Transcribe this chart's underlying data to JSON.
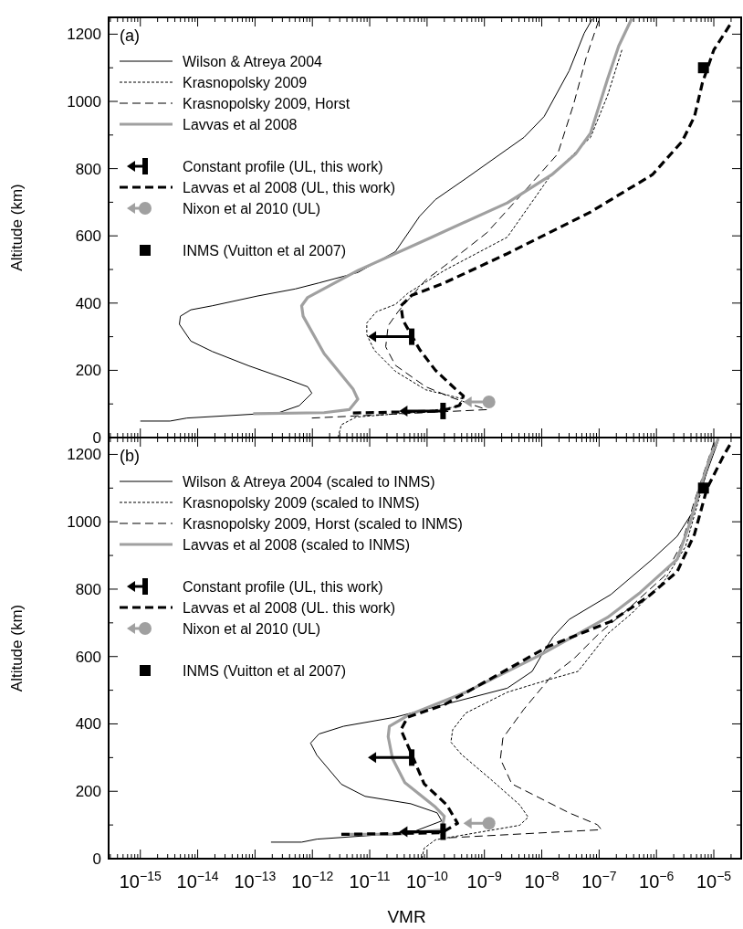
{
  "chart_data": [
    {
      "type": "line",
      "annotations": [
        "(a)"
      ],
      "ylabel": "Altitude (km)",
      "xlim": [
        2.8e-16,
        3e-05
      ],
      "ylim": [
        0,
        1250
      ],
      "log": "x",
      "legend": "top left",
      "tick_labels": "y",
      "xticks": [
        {
          "value": 3e-16,
          "label": null
        },
        {
          "value": 4e-16,
          "label": null
        },
        {
          "value": 5e-16,
          "label": null
        },
        {
          "value": 6e-16,
          "label": null
        },
        {
          "value": 7e-16,
          "label": null
        },
        {
          "value": 8e-16,
          "label": null
        },
        {
          "value": 9e-16,
          "label": null
        },
        {
          "value": 1e-15,
          "label": null
        },
        {
          "value": 2e-15,
          "label": null
        },
        {
          "value": 3e-15,
          "label": null
        },
        {
          "value": 4e-15,
          "label": null
        },
        {
          "value": 5e-15,
          "label": null
        },
        {
          "value": 6e-15,
          "label": null
        },
        {
          "value": 7e-15,
          "label": null
        },
        {
          "value": 8e-15,
          "label": null
        },
        {
          "value": 9e-15,
          "label": null
        },
        {
          "value": 1e-14,
          "label": null
        },
        {
          "value": 2e-14,
          "label": null
        },
        {
          "value": 3e-14,
          "label": null
        },
        {
          "value": 4e-14,
          "label": null
        },
        {
          "value": 5e-14,
          "label": null
        },
        {
          "value": 6e-14,
          "label": null
        },
        {
          "value": 7e-14,
          "label": null
        },
        {
          "value": 8e-14,
          "label": null
        },
        {
          "value": 9e-14,
          "label": null
        },
        {
          "value": 1e-13,
          "label": null
        },
        {
          "value": 2e-13,
          "label": null
        },
        {
          "value": 3e-13,
          "label": null
        },
        {
          "value": 4e-13,
          "label": null
        },
        {
          "value": 5e-13,
          "label": null
        },
        {
          "value": 6e-13,
          "label": null
        },
        {
          "value": 7e-13,
          "label": null
        },
        {
          "value": 8e-13,
          "label": null
        },
        {
          "value": 9e-13,
          "label": null
        },
        {
          "value": 1e-12,
          "label": null
        },
        {
          "value": 2e-12,
          "label": null
        },
        {
          "value": 3e-12,
          "label": null
        },
        {
          "value": 4e-12,
          "label": null
        },
        {
          "value": 5e-12,
          "label": null
        },
        {
          "value": 6e-12,
          "label": null
        },
        {
          "value": 7e-12,
          "label": null
        },
        {
          "value": 8e-12,
          "label": null
        },
        {
          "value": 9e-12,
          "label": null
        },
        {
          "value": 1e-11,
          "label": null
        },
        {
          "value": 2e-11,
          "label": null
        },
        {
          "value": 3e-11,
          "label": null
        },
        {
          "value": 4e-11,
          "label": null
        },
        {
          "value": 5e-11,
          "label": null
        },
        {
          "value": 6e-11,
          "label": null
        },
        {
          "value": 7e-11,
          "label": null
        },
        {
          "value": 8e-11,
          "label": null
        },
        {
          "value": 9e-11,
          "label": null
        },
        {
          "value": 1e-10,
          "label": null
        },
        {
          "value": 2e-10,
          "label": null
        },
        {
          "value": 3e-10,
          "label": null
        },
        {
          "value": 4e-10,
          "label": null
        },
        {
          "value": 5e-10,
          "label": null
        },
        {
          "value": 6e-10,
          "label": null
        },
        {
          "value": 7e-10,
          "label": null
        },
        {
          "value": 8e-10,
          "label": null
        },
        {
          "value": 9e-10,
          "label": null
        },
        {
          "value": 1e-09,
          "label": null
        },
        {
          "value": 2e-09,
          "label": null
        },
        {
          "value": 3e-09,
          "label": null
        },
        {
          "value": 4e-09,
          "label": null
        },
        {
          "value": 5e-09,
          "label": null
        },
        {
          "value": 6e-09,
          "label": null
        },
        {
          "value": 7e-09,
          "label": null
        },
        {
          "value": 8e-09,
          "label": null
        },
        {
          "value": 9e-09,
          "label": null
        },
        {
          "value": 1e-08,
          "label": null
        },
        {
          "value": 2e-08,
          "label": null
        },
        {
          "value": 3e-08,
          "label": null
        },
        {
          "value": 4e-08,
          "label": null
        },
        {
          "value": 5e-08,
          "label": null
        },
        {
          "value": 6e-08,
          "label": null
        },
        {
          "value": 7e-08,
          "label": null
        },
        {
          "value": 8e-08,
          "label": null
        },
        {
          "value": 9e-08,
          "label": null
        },
        {
          "value": 1e-07,
          "label": null
        },
        {
          "value": 2e-07,
          "label": null
        },
        {
          "value": 3e-07,
          "label": null
        },
        {
          "value": 4e-07,
          "label": null
        },
        {
          "value": 5e-07,
          "label": null
        },
        {
          "value": 6e-07,
          "label": null
        },
        {
          "value": 7e-07,
          "label": null
        },
        {
          "value": 8e-07,
          "label": null
        },
        {
          "value": 9e-07,
          "label": null
        },
        {
          "value": 1e-06,
          "label": null
        },
        {
          "value": 2e-06,
          "label": null
        },
        {
          "value": 3e-06,
          "label": null
        },
        {
          "value": 4e-06,
          "label": null
        },
        {
          "value": 5e-06,
          "label": null
        },
        {
          "value": 6e-06,
          "label": null
        },
        {
          "value": 7e-06,
          "label": null
        },
        {
          "value": 8e-06,
          "label": null
        },
        {
          "value": 9e-06,
          "label": null
        },
        {
          "value": 1e-05,
          "label": null
        },
        {
          "value": 2e-05,
          "label": null
        }
      ],
      "yticks": [
        0,
        {
          "value": 100,
          "label": null
        },
        200,
        {
          "value": 300,
          "label": null
        },
        400,
        {
          "value": 500,
          "label": null
        },
        600,
        {
          "value": 700,
          "label": null
        },
        800,
        {
          "value": 900,
          "label": null
        },
        1000,
        {
          "value": 1100,
          "label": null
        },
        1200
      ],
      "series": [
        {
          "name": "Wilson & Atreya 2004",
          "color": "#000000",
          "line_style": "solid",
          "x": [
            1e-15,
            3.3e-15,
            6.5e-15,
            2.6e-13,
            5.9e-13,
            9.8e-13,
            8.3e-13,
            4.3e-13,
            7.9e-14,
            1.8e-14,
            7.6e-15,
            4.8e-15,
            5e-15,
            7.6e-15,
            1.8e-14,
            1.1e-13,
            5e-13,
            1.3e-12,
            6.2e-12,
            2.8e-11,
            7.4e-11,
            1.4e-10,
            4.7e-10,
            4.9e-09,
            1.1e-08,
            3e-08,
            5.5e-08,
            7.6e-08
          ],
          "values": [
            49,
            49,
            58,
            74,
            95,
            132,
            151,
            169,
            213,
            256,
            287,
            337,
            361,
            380,
            392,
            421,
            442,
            460,
            491,
            553,
            658,
            708,
            770,
            893,
            955,
            1091,
            1203,
            1245
          ]
        },
        {
          "name": "Krasnopolsky 2009",
          "color": "#000000",
          "line_style": "dotted",
          "x": [
            2.8e-12,
            3.2e-12,
            5.8e-12,
            8.9e-11,
            3.4e-10,
            4.2e-10,
            9.5e-11,
            2.8e-11,
            1.2e-11,
            8.9e-12,
            8.9e-12,
            1.3e-11,
            2.8e-11,
            4.6e-11,
            2e-10,
            2.5e-09,
            1.3e-08,
            7.1e-08,
            1.4e-07,
            2.5e-07
          ],
          "values": [
            0,
            38,
            61,
            77,
            92,
            115,
            142,
            197,
            260,
            306,
            341,
            374,
            396,
            429,
            497,
            596,
            770,
            893,
            1017,
            1153
          ]
        },
        {
          "name": "Krasnopolsky 2009, Horst",
          "color": "#000000",
          "line_style": "dashed",
          "x": [
            9.8e-13,
            1.1e-09,
            2.6e-10,
            9.5e-11,
            2.8e-11,
            1.9e-11,
            2.1e-11,
            3.2e-11,
            9.5e-11,
            2e-10,
            1.1e-09,
            5.8e-09,
            1.9e-08,
            3.6e-08,
            5.9e-08,
            9.8e-08
          ],
          "values": [
            58,
            83,
            120,
            151,
            215,
            270,
            333,
            377,
            469,
            510,
            609,
            745,
            844,
            992,
            1128,
            1240
          ]
        },
        {
          "name": "Lavvas et al 2008",
          "color": "#a0a0a0",
          "line_style": "solid",
          "x": [
            9.3e-14,
            1.6e-12,
            4.4e-12,
            6.2e-12,
            5.1e-12,
            1.6e-12,
            6.9e-13,
            6.5e-13,
            8.3e-13,
            6.2e-12,
            1.2e-10,
            2.5e-09,
            1.5e-08,
            3.9e-08,
            7.1e-08,
            1.4e-07,
            2.2e-07,
            3.7e-07
          ],
          "values": [
            71,
            74,
            83,
            114,
            145,
            250,
            361,
            392,
            417,
            497,
            596,
            698,
            782,
            844,
            906,
            1066,
            1165,
            1246
          ]
        },
        {
          "name": "Constant profile (UL, this work)",
          "type": "scatter",
          "color": "#000000",
          "x": [
            5.4e-11,
            1.9e-10
          ],
          "values": [
            300,
            79
          ]
        },
        {
          "name": "Lavvas et al 2008 (UL, this work)",
          "color": "#000000",
          "line_style": "dashed",
          "x": [
            5.1e-12,
            1.8e-10,
            3.7e-10,
            4.3e-10,
            3.1e-10,
            1.4e-10,
            7.4e-11,
            3.8e-11,
            3.5e-11,
            5.4e-11,
            2e-10,
            2.5e-09,
            7.1e-08,
            8.5e-07,
            2.8e-06,
            4.6e-06,
            6.3e-06,
            1e-05,
            1.9e-05
          ],
          "values": [
            73,
            79,
            96,
            124,
            145,
            200,
            262,
            349,
            392,
            423,
            460,
            547,
            671,
            782,
            881,
            955,
            1054,
            1153,
            1227
          ]
        },
        {
          "name": "Nixon et al 2010 (UL)",
          "type": "scatter",
          "color": "#a0a0a0",
          "marker": "circle",
          "x": [
            1.2e-09
          ],
          "values": [
            106
          ]
        },
        {
          "name": "INMS (Vuitton et al 2007)",
          "type": "scatter",
          "color": "#000000",
          "marker": "square",
          "x": [
            6.6e-06
          ],
          "values": [
            1100
          ]
        }
      ]
    },
    {
      "type": "line",
      "annotations": [
        "(b)"
      ],
      "ylabel": "Altitude (km)",
      "xlabel": "VMR",
      "xlim": [
        2.8e-16,
        3e-05
      ],
      "ylim": [
        0,
        1250
      ],
      "log": "x",
      "legend": "top left",
      "xticks": [
        {
          "value": 3e-16,
          "label": null
        },
        {
          "value": 4e-16,
          "label": null
        },
        {
          "value": 5e-16,
          "label": null
        },
        {
          "value": 6e-16,
          "label": null
        },
        {
          "value": 7e-16,
          "label": null
        },
        {
          "value": 8e-16,
          "label": null
        },
        {
          "value": 9e-16,
          "label": null
        },
        {
          "value": 1e-15,
          "label": "10$^{−15}$"
        },
        {
          "value": 2e-15,
          "label": null
        },
        {
          "value": 3e-15,
          "label": null
        },
        {
          "value": 4e-15,
          "label": null
        },
        {
          "value": 5e-15,
          "label": null
        },
        {
          "value": 6e-15,
          "label": null
        },
        {
          "value": 7e-15,
          "label": null
        },
        {
          "value": 8e-15,
          "label": null
        },
        {
          "value": 9e-15,
          "label": null
        },
        {
          "value": 1e-14,
          "label": "10$^{−14}$"
        },
        {
          "value": 2e-14,
          "label": null
        },
        {
          "value": 3e-14,
          "label": null
        },
        {
          "value": 4e-14,
          "label": null
        },
        {
          "value": 5e-14,
          "label": null
        },
        {
          "value": 6e-14,
          "label": null
        },
        {
          "value": 7e-14,
          "label": null
        },
        {
          "value": 8e-14,
          "label": null
        },
        {
          "value": 9e-14,
          "label": null
        },
        {
          "value": 1e-13,
          "label": "10$^{−13}$"
        },
        {
          "value": 2e-13,
          "label": null
        },
        {
          "value": 3e-13,
          "label": null
        },
        {
          "value": 4e-13,
          "label": null
        },
        {
          "value": 5e-13,
          "label": null
        },
        {
          "value": 6e-13,
          "label": null
        },
        {
          "value": 7e-13,
          "label": null
        },
        {
          "value": 8e-13,
          "label": null
        },
        {
          "value": 9e-13,
          "label": null
        },
        {
          "value": 1e-12,
          "label": "10$^{−12}$"
        },
        {
          "value": 2e-12,
          "label": null
        },
        {
          "value": 3e-12,
          "label": null
        },
        {
          "value": 4e-12,
          "label": null
        },
        {
          "value": 5e-12,
          "label": null
        },
        {
          "value": 6e-12,
          "label": null
        },
        {
          "value": 7e-12,
          "label": null
        },
        {
          "value": 8e-12,
          "label": null
        },
        {
          "value": 9e-12,
          "label": null
        },
        {
          "value": 1e-11,
          "label": "10$^{−11}$"
        },
        {
          "value": 2e-11,
          "label": null
        },
        {
          "value": 3e-11,
          "label": null
        },
        {
          "value": 4e-11,
          "label": null
        },
        {
          "value": 5e-11,
          "label": null
        },
        {
          "value": 6e-11,
          "label": null
        },
        {
          "value": 7e-11,
          "label": null
        },
        {
          "value": 8e-11,
          "label": null
        },
        {
          "value": 9e-11,
          "label": null
        },
        {
          "value": 1e-10,
          "label": "10$^{−10}$"
        },
        {
          "value": 2e-10,
          "label": null
        },
        {
          "value": 3e-10,
          "label": null
        },
        {
          "value": 4e-10,
          "label": null
        },
        {
          "value": 5e-10,
          "label": null
        },
        {
          "value": 6e-10,
          "label": null
        },
        {
          "value": 7e-10,
          "label": null
        },
        {
          "value": 8e-10,
          "label": null
        },
        {
          "value": 9e-10,
          "label": null
        },
        {
          "value": 1e-09,
          "label": "10$^{−9}$"
        },
        {
          "value": 2e-09,
          "label": null
        },
        {
          "value": 3e-09,
          "label": null
        },
        {
          "value": 4e-09,
          "label": null
        },
        {
          "value": 5e-09,
          "label": null
        },
        {
          "value": 6e-09,
          "label": null
        },
        {
          "value": 7e-09,
          "label": null
        },
        {
          "value": 8e-09,
          "label": null
        },
        {
          "value": 9e-09,
          "label": null
        },
        {
          "value": 1e-08,
          "label": "10$^{−8}$"
        },
        {
          "value": 2e-08,
          "label": null
        },
        {
          "value": 3e-08,
          "label": null
        },
        {
          "value": 4e-08,
          "label": null
        },
        {
          "value": 5e-08,
          "label": null
        },
        {
          "value": 6e-08,
          "label": null
        },
        {
          "value": 7e-08,
          "label": null
        },
        {
          "value": 8e-08,
          "label": null
        },
        {
          "value": 9e-08,
          "label": null
        },
        {
          "value": 1e-07,
          "label": "10$^{−7}$"
        },
        {
          "value": 2e-07,
          "label": null
        },
        {
          "value": 3e-07,
          "label": null
        },
        {
          "value": 4e-07,
          "label": null
        },
        {
          "value": 5e-07,
          "label": null
        },
        {
          "value": 6e-07,
          "label": null
        },
        {
          "value": 7e-07,
          "label": null
        },
        {
          "value": 8e-07,
          "label": null
        },
        {
          "value": 9e-07,
          "label": null
        },
        {
          "value": 1e-06,
          "label": "10$^{−6}$"
        },
        {
          "value": 2e-06,
          "label": null
        },
        {
          "value": 3e-06,
          "label": null
        },
        {
          "value": 4e-06,
          "label": null
        },
        {
          "value": 5e-06,
          "label": null
        },
        {
          "value": 6e-06,
          "label": null
        },
        {
          "value": 7e-06,
          "label": null
        },
        {
          "value": 8e-06,
          "label": null
        },
        {
          "value": 9e-06,
          "label": null
        },
        {
          "value": 1e-05,
          "label": "10$^{−5}$"
        },
        {
          "value": 2e-05,
          "label": null
        }
      ],
      "yticks": [
        0,
        {
          "value": 100,
          "label": null
        },
        200,
        {
          "value": 300,
          "label": null
        },
        400,
        {
          "value": 500,
          "label": null
        },
        600,
        {
          "value": 700,
          "label": null
        },
        800,
        {
          "value": 900,
          "label": null
        },
        1000,
        {
          "value": 1100,
          "label": null
        },
        1200
      ],
      "series": [
        {
          "name": "Wilson & Atreya 2004 (scaled to INMS)",
          "color": "#000000",
          "line_style": "solid",
          "x": [
            1.9e-13,
            6.5e-13,
            1.2e-12,
            5.2e-11,
            1.8e-10,
            1.5e-10,
            5.2e-11,
            8.3e-12,
            3.2e-12,
            1.2e-12,
            9.3e-13,
            1.3e-12,
            3.5e-12,
            2.8e-11,
            2.5e-09,
            6.8e-09,
            1.1e-08,
            1.6e-08,
            3e-08,
            1.6e-07,
            8.5e-07,
            2.3e-06,
            4.6e-06,
            7.6e-06,
            1.2e-05
          ],
          "values": [
            49,
            49,
            58,
            77,
            112,
            136,
            163,
            185,
            221,
            307,
            343,
            370,
            393,
            420,
            506,
            556,
            617,
            660,
            710,
            784,
            889,
            957,
            1037,
            1148,
            1241
          ]
        },
        {
          "name": "Krasnopolsky 2009 (scaled to INMS)",
          "color": "#000000",
          "line_style": "dotted",
          "x": [
            8.1e-11,
            8.9e-11,
            1.4e-10,
            4.1e-09,
            5.8e-09,
            4.1e-09,
            1.3e-09,
            4e-10,
            2.6e-10,
            2.8e-10,
            4.7e-10,
            2.5e-09,
            1.3e-08,
            4.3e-08,
            1.4e-07,
            3.7e-07,
            1.4e-06,
            3.2e-06,
            5.4e-06,
            1e-05
          ],
          "values": [
            0,
            31,
            56,
            99,
            123,
            160,
            235,
            309,
            346,
            383,
            432,
            494,
            531,
            556,
            667,
            728,
            827,
            926,
            1062,
            1222
          ]
        },
        {
          "name": "Krasnopolsky 2009, Horst (scaled to INMS)",
          "color": "#000000",
          "line_style": "dashed",
          "x": [
            2.4e-10,
            1.1e-07,
            9.3e-08,
            3e-08,
            3e-09,
            1.9e-09,
            2.1e-09,
            4.9e-09,
            1.5e-08,
            3.6e-08,
            9.8e-08,
            3.2e-07,
            1.4e-06,
            2.8e-06,
            4.6e-06,
            1e-05
          ],
          "values": [
            62,
            86,
            101,
            136,
            222,
            296,
            358,
            444,
            543,
            593,
            667,
            741,
            840,
            938,
            1062,
            1235
          ]
        },
        {
          "name": "Lavvas et al 2008 (scaled to INMS)",
          "color": "#a0a0a0",
          "line_style": "solid",
          "x": [
            3.2e-12,
            2.8e-11,
            1.8e-10,
            2e-10,
            1.4e-10,
            4.1e-11,
            2.5e-11,
            2.1e-11,
            2.2e-11,
            4.6e-11,
            4.7e-10,
            9.5e-09,
            1.4e-07,
            5.2e-07,
            2.3e-06,
            3.9e-06,
            5.4e-06,
            8.9e-06,
            1.2e-05
          ],
          "values": [
            72,
            72,
            85,
            126,
            153,
            226,
            297,
            362,
            393,
            425,
            494,
            605,
            716,
            790,
            889,
            1000,
            1086,
            1198,
            1247
          ]
        },
        {
          "name": "Constant profile (UL, this work)",
          "type": "scatter",
          "color": "#000000",
          "x": [
            5.4e-11,
            1.9e-10
          ],
          "values": [
            300,
            80
          ]
        },
        {
          "name": "Lavvas et al 2008 (UL. this work)",
          "color": "#000000",
          "line_style": "dashed",
          "x": [
            3.2e-12,
            1.8e-10,
            3.4e-10,
            3.1e-10,
            2.2e-10,
            8.9e-11,
            5.4e-11,
            3.5e-11,
            4.6e-11,
            2e-10,
            1.3e-08,
            1.6e-07,
            7.2e-07,
            2.3e-06,
            4.6e-06,
            7.6e-06,
            1.5e-05,
            1.9e-05
          ],
          "values": [
            72,
            77,
            105,
            117,
            160,
            222,
            309,
            383,
            420,
            457,
            630,
            704,
            778,
            852,
            963,
            1099,
            1198,
            1228
          ]
        },
        {
          "name": "Nixon et al 2010 (UL)",
          "type": "scatter",
          "color": "#a0a0a0",
          "marker": "circle",
          "x": [
            1.2e-09
          ],
          "values": [
            105
          ]
        },
        {
          "name": "INMS (Vuitton et al 2007)",
          "type": "scatter",
          "color": "#000000",
          "marker": "square",
          "x": [
            6.6e-06
          ],
          "values": [
            1100
          ]
        }
      ]
    }
  ]
}
